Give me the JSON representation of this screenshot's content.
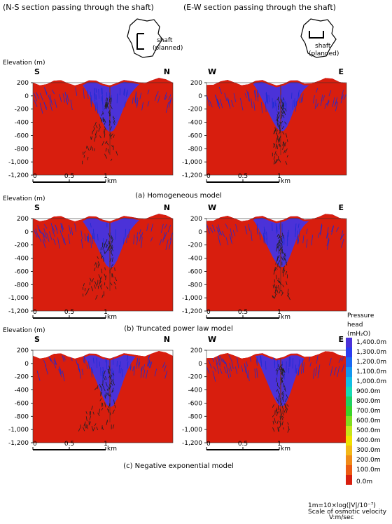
{
  "header": {
    "ns_title": "(N-S section passing through the shaft)",
    "ew_title": "(E-W section passing through the shaft)",
    "shaft_label_line1": "shaft",
    "shaft_label_line2": "(planned)"
  },
  "colors": {
    "scale": [
      "#4b32d8",
      "#2b3cf0",
      "#1a68f2",
      "#1396ee",
      "#12bde3",
      "#16d8b4",
      "#1fcf63",
      "#3bd22a",
      "#80dc20",
      "#c5e41a",
      "#f0e000",
      "#f3b718",
      "#f08a18",
      "#ec5a12",
      "#d81e0e"
    ],
    "vectors": "#1d2bd2"
  },
  "chart_data": {
    "type": "heatmap",
    "panels": [
      {
        "model_caption": "(a) Homogeneous model",
        "sections": [
          {
            "title": "N-S section passing through the shaft",
            "left_dir": "S",
            "right_dir": "N",
            "xlabel": "km",
            "ylabel": "Elevation (m)",
            "ylim": [
              -1200,
              200
            ],
            "yticks": [
              "200",
              "0",
              "-200",
              "-400",
              "-600",
              "-800",
              "-1,000",
              "-1,200"
            ],
            "xticks": [
              "0",
              "0.5",
              "1"
            ]
          },
          {
            "title": "E-W section passing through the shaft",
            "left_dir": "W",
            "right_dir": "E",
            "xlabel": "km",
            "ylim": [
              -1200,
              200
            ],
            "yticks": [
              "200",
              "0",
              "-200",
              "-400",
              "-600",
              "-800",
              "-1,000",
              "-1,200"
            ],
            "xticks": [
              "0",
              "0.5",
              "1"
            ]
          }
        ]
      },
      {
        "model_caption": "(b) Truncated power law model",
        "sections": [
          {
            "left_dir": "S",
            "right_dir": "N",
            "xlabel": "km",
            "ylabel": "Elevation (m)",
            "ylim": [
              -1200,
              200
            ],
            "yticks": [
              "200",
              "0",
              "-200",
              "-400",
              "-600",
              "-800",
              "-1,000",
              "-1,200"
            ],
            "xticks": [
              "0",
              "0.5",
              "1"
            ]
          },
          {
            "left_dir": "W",
            "right_dir": "E",
            "xlabel": "km",
            "ylim": [
              -1200,
              200
            ],
            "yticks": [
              "200",
              "0",
              "-200",
              "-400",
              "-600",
              "-800",
              "-1,000",
              "-1,200"
            ],
            "xticks": [
              "0",
              "0.5",
              "1"
            ]
          }
        ]
      },
      {
        "model_caption": "(c) Negative exponential model",
        "sections": [
          {
            "left_dir": "S",
            "right_dir": "N",
            "xlabel": "km",
            "ylabel": "Elevation (m)",
            "ylim": [
              -1200,
              200
            ],
            "yticks": [
              "200",
              "0",
              "-200",
              "-400",
              "-600",
              "-800",
              "-1,000",
              "-1,200"
            ],
            "xticks": [
              "0",
              "0.5",
              "1"
            ]
          },
          {
            "left_dir": "W",
            "right_dir": "E",
            "xlabel": "km",
            "ylim": [
              -1200,
              200
            ],
            "yticks": [
              "200",
              "0",
              "-200",
              "-400",
              "-600",
              "-800",
              "-1,000",
              "-1,200"
            ],
            "xticks": [
              "0",
              "0.5",
              "1"
            ]
          }
        ]
      }
    ],
    "legend": {
      "title_line1": "Pressure",
      "title_line2": "head",
      "title_line3": "(mH₂O)",
      "levels": [
        "1,400.0m",
        "1,300.0m",
        "1,200.0m",
        "1,100.0m",
        "1,000.0m",
        "900.0m",
        "800.0m",
        "700.0m",
        "600.0m",
        "500.0m",
        "400.0m",
        "300.0m",
        "200.0m",
        "100.0m",
        "0.0m"
      ]
    },
    "velocity_scale": {
      "label": "Scale of osmotic velocity",
      "formula": "1m=10×log(|V|/10⁻⁷)",
      "units": "V:m/sec"
    }
  }
}
